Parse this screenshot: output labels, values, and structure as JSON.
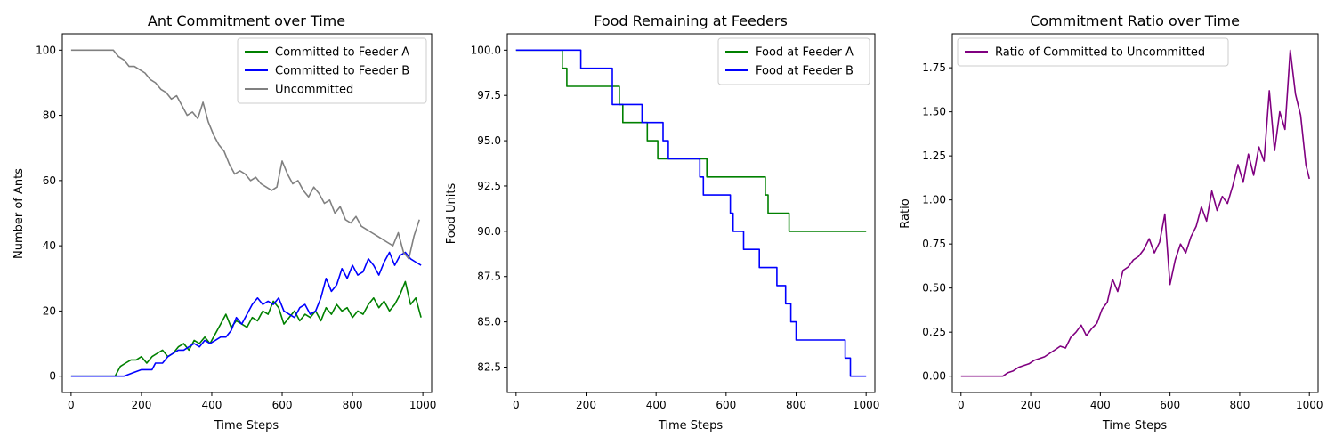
{
  "chart_data": [
    {
      "type": "line",
      "title": "Ant Commitment over Time",
      "xlabel": "Time Steps",
      "ylabel": "Number of Ants",
      "xlim": [
        -25,
        1025
      ],
      "ylim": [
        -5,
        105
      ],
      "xticks": [
        0,
        200,
        400,
        600,
        800,
        1000
      ],
      "yticks": [
        0,
        20,
        40,
        60,
        80,
        100
      ],
      "ytick_decimals": 0,
      "grid": false,
      "legend": "top-right",
      "series": [
        {
          "name": "Committed to Feeder A",
          "color": "#008000",
          "x": [
            0,
            125,
            140,
            155,
            170,
            185,
            200,
            215,
            230,
            245,
            260,
            275,
            290,
            305,
            320,
            335,
            350,
            365,
            380,
            395,
            410,
            425,
            440,
            455,
            470,
            485,
            500,
            515,
            530,
            545,
            560,
            575,
            590,
            605,
            620,
            635,
            650,
            665,
            680,
            695,
            710,
            725,
            740,
            755,
            770,
            785,
            800,
            815,
            830,
            845,
            860,
            875,
            890,
            905,
            920,
            935,
            950,
            965,
            980,
            995
          ],
          "values": [
            0,
            0,
            3,
            4,
            5,
            5,
            6,
            4,
            6,
            7,
            8,
            6,
            7,
            9,
            10,
            8,
            11,
            10,
            12,
            10,
            13,
            16,
            19,
            15,
            17,
            16,
            15,
            18,
            17,
            20,
            19,
            23,
            21,
            16,
            18,
            20,
            17,
            19,
            18,
            20,
            17,
            21,
            19,
            22,
            20,
            21,
            18,
            20,
            19,
            22,
            24,
            21,
            23,
            20,
            22,
            25,
            29,
            22,
            24,
            18
          ]
        },
        {
          "name": "Committed to Feeder B",
          "color": "#0000ff",
          "x": [
            0,
            100,
            150,
            175,
            200,
            230,
            240,
            260,
            275,
            290,
            305,
            320,
            335,
            350,
            365,
            380,
            395,
            410,
            425,
            440,
            455,
            470,
            485,
            500,
            515,
            530,
            545,
            560,
            575,
            590,
            605,
            620,
            635,
            650,
            665,
            680,
            695,
            710,
            725,
            740,
            755,
            770,
            785,
            800,
            815,
            830,
            845,
            860,
            875,
            890,
            905,
            920,
            935,
            950,
            965,
            980,
            995
          ],
          "values": [
            0,
            0,
            0,
            1,
            2,
            2,
            4,
            4,
            6,
            7,
            8,
            8,
            9,
            10,
            9,
            11,
            10,
            11,
            12,
            12,
            14,
            18,
            16,
            19,
            22,
            24,
            22,
            23,
            22,
            24,
            20,
            19,
            18,
            21,
            22,
            19,
            20,
            24,
            30,
            26,
            28,
            33,
            30,
            34,
            31,
            32,
            36,
            34,
            31,
            35,
            38,
            34,
            37,
            38,
            36,
            35,
            34
          ]
        },
        {
          "name": "Uncommitted",
          "color": "#808080",
          "x": [
            0,
            120,
            135,
            150,
            165,
            180,
            195,
            210,
            225,
            240,
            255,
            270,
            285,
            300,
            315,
            330,
            345,
            360,
            375,
            390,
            405,
            420,
            435,
            450,
            465,
            480,
            495,
            510,
            525,
            540,
            555,
            570,
            585,
            600,
            615,
            630,
            645,
            660,
            675,
            690,
            705,
            720,
            735,
            750,
            765,
            780,
            795,
            810,
            825,
            840,
            855,
            870,
            885,
            900,
            915,
            930,
            945,
            960,
            975,
            990
          ],
          "values": [
            100,
            100,
            98,
            97,
            95,
            95,
            94,
            93,
            91,
            90,
            88,
            87,
            85,
            86,
            83,
            80,
            81,
            79,
            84,
            78,
            74,
            71,
            69,
            65,
            62,
            63,
            62,
            60,
            61,
            59,
            58,
            57,
            58,
            66,
            62,
            59,
            60,
            57,
            55,
            58,
            56,
            53,
            54,
            50,
            52,
            48,
            47,
            49,
            46,
            45,
            44,
            43,
            42,
            41,
            40,
            44,
            38,
            36,
            43,
            48
          ]
        }
      ]
    },
    {
      "type": "line",
      "title": "Food Remaining at Feeders",
      "xlabel": "Time Steps",
      "ylabel": "Food Units",
      "xlim": [
        -25,
        1025
      ],
      "ylim": [
        81.1,
        100.9
      ],
      "xticks": [
        0,
        200,
        400,
        600,
        800,
        1000
      ],
      "yticks": [
        82.5,
        85.0,
        87.5,
        90.0,
        92.5,
        95.0,
        97.5,
        100.0
      ],
      "ytick_decimals": 1,
      "grid": false,
      "legend": "top-right",
      "step": true,
      "series": [
        {
          "name": "Food at Feeder A",
          "color": "#008000",
          "x": [
            0,
            130,
            132,
            140,
            145,
            292,
            295,
            300,
            305,
            370,
            375,
            400,
            405,
            540,
            545,
            708,
            712,
            715,
            720,
            775,
            780,
            1000
          ],
          "values": [
            100,
            100,
            99,
            99,
            98,
            98,
            97,
            97,
            96,
            96,
            95,
            95,
            94,
            94,
            93,
            93,
            92,
            92,
            91,
            91,
            90,
            90
          ]
        },
        {
          "name": "Food at Feeder B",
          "color": "#0000ff",
          "x": [
            0,
            183,
            185,
            272,
            275,
            355,
            360,
            415,
            420,
            430,
            435,
            518,
            525,
            530,
            535,
            608,
            612,
            615,
            620,
            645,
            650,
            690,
            695,
            740,
            745,
            765,
            770,
            780,
            785,
            795,
            800,
            937,
            940,
            950,
            955,
            1000
          ],
          "values": [
            100,
            100,
            99,
            99,
            97,
            97,
            96,
            96,
            95,
            95,
            94,
            94,
            93,
            93,
            92,
            92,
            91,
            91,
            90,
            90,
            89,
            89,
            88,
            88,
            87,
            87,
            86,
            86,
            85,
            85,
            84,
            84,
            83,
            83,
            82,
            82
          ]
        }
      ]
    },
    {
      "type": "line",
      "title": "Commitment Ratio over Time",
      "xlabel": "Time Steps",
      "ylabel": "Ratio",
      "xlim": [
        -25,
        1025
      ],
      "ylim": [
        -0.0925,
        1.9425
      ],
      "xticks": [
        0,
        200,
        400,
        600,
        800,
        1000
      ],
      "yticks": [
        0.0,
        0.25,
        0.5,
        0.75,
        1.0,
        1.25,
        1.5,
        1.75
      ],
      "ytick_decimals": 2,
      "grid": false,
      "legend": "top-left",
      "series": [
        {
          "name": "Ratio of Committed to Uncommitted",
          "color": "#800080",
          "x": [
            0,
            120,
            135,
            150,
            165,
            180,
            195,
            210,
            225,
            240,
            255,
            270,
            285,
            300,
            315,
            330,
            345,
            360,
            375,
            390,
            405,
            420,
            435,
            450,
            465,
            480,
            495,
            510,
            525,
            540,
            555,
            570,
            585,
            600,
            615,
            630,
            645,
            660,
            675,
            690,
            705,
            720,
            735,
            750,
            765,
            780,
            795,
            810,
            825,
            840,
            855,
            870,
            885,
            900,
            915,
            930,
            945,
            960,
            975,
            990,
            1000
          ],
          "values": [
            0,
            0,
            0.02,
            0.03,
            0.05,
            0.06,
            0.07,
            0.09,
            0.1,
            0.11,
            0.13,
            0.15,
            0.17,
            0.16,
            0.22,
            0.25,
            0.29,
            0.23,
            0.27,
            0.3,
            0.38,
            0.42,
            0.55,
            0.48,
            0.6,
            0.62,
            0.66,
            0.68,
            0.72,
            0.78,
            0.7,
            0.76,
            0.92,
            0.52,
            0.66,
            0.75,
            0.7,
            0.79,
            0.85,
            0.96,
            0.88,
            1.05,
            0.94,
            1.02,
            0.98,
            1.08,
            1.2,
            1.1,
            1.26,
            1.14,
            1.3,
            1.22,
            1.62,
            1.28,
            1.5,
            1.4,
            1.85,
            1.6,
            1.48,
            1.2,
            1.12
          ]
        }
      ]
    }
  ]
}
